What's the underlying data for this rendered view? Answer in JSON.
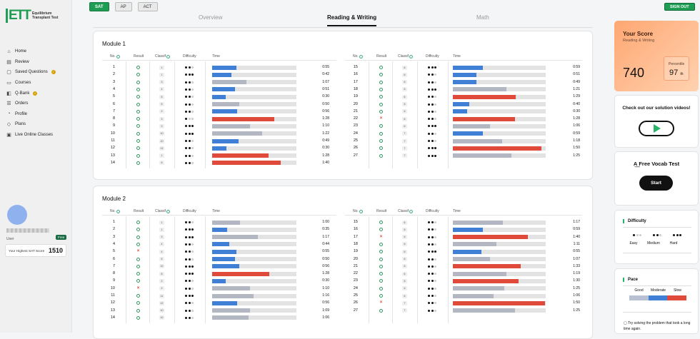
{
  "brand": {
    "logo_mark": "ETT",
    "logo_text_line1": "Equilibrium",
    "logo_text_line2": "Transplant Test"
  },
  "sidebar": {
    "items": [
      {
        "label": "Home",
        "icon": "home-icon",
        "glyph": "⌂"
      },
      {
        "label": "Review",
        "icon": "review-icon",
        "glyph": "▤"
      },
      {
        "label": "Saved Questions",
        "icon": "bookmark-icon",
        "glyph": "▢",
        "badge": true
      },
      {
        "label": "Courses",
        "icon": "courses-icon",
        "glyph": "▭"
      },
      {
        "label": "Q-Bank",
        "icon": "qbank-icon",
        "glyph": "◧",
        "badge": true
      },
      {
        "label": "Orders",
        "icon": "orders-icon",
        "glyph": "☰"
      },
      {
        "label": "Profile",
        "icon": "profile-icon",
        "glyph": "◔"
      },
      {
        "label": "Plans",
        "icon": "plans-icon",
        "glyph": "◇"
      },
      {
        "label": "Live Online Classes",
        "icon": "live-icon",
        "glyph": "▣"
      }
    ],
    "user_label": "User",
    "plan_badge": "Free",
    "highest_score_label": "Your Highest SAT Score",
    "highest_score_value": "1510"
  },
  "topbar": {
    "tests": [
      "SAT",
      "AP",
      "ACT"
    ],
    "active_test": "SAT",
    "signout": "SIGN OUT"
  },
  "tabs": {
    "items": [
      "Overview",
      "Reading & Writing",
      "Math"
    ],
    "active": "Reading & Writing"
  },
  "colors": {
    "green": "#1f9d55",
    "blue": "#3f7fd6",
    "gray": "#b2b7c1",
    "red": "#e04a3b"
  },
  "table_headers": {
    "no": "No.",
    "result": "Result",
    "classif": "Classif",
    "difficulty": "Difficulty",
    "time": "Time"
  },
  "modules": [
    {
      "title": "Module 1",
      "rows": [
        {
          "no": "1",
          "result": "ok",
          "cls": "1",
          "diff": 2,
          "pct": 0.29,
          "color": "blue",
          "time": "0:55"
        },
        {
          "no": "2",
          "result": "ok",
          "cls": "1",
          "diff": 3,
          "pct": 0.23,
          "color": "blue",
          "time": "0:42"
        },
        {
          "no": "3",
          "result": "ok",
          "cls": "3",
          "diff": 2,
          "pct": 0.41,
          "color": "gray",
          "time": "1:07"
        },
        {
          "no": "4",
          "result": "ok",
          "cls": "4",
          "diff": 2,
          "pct": 0.27,
          "color": "blue",
          "time": "0:51"
        },
        {
          "no": "5",
          "result": "ok",
          "cls": "5",
          "diff": 2,
          "pct": 0.16,
          "color": "blue",
          "time": "0:30"
        },
        {
          "no": "6",
          "result": "ok",
          "cls": "6",
          "diff": 2,
          "pct": 0.32,
          "color": "gray",
          "time": "0:50"
        },
        {
          "no": "7",
          "result": "ok",
          "cls": "2",
          "diff": 2,
          "pct": 0.3,
          "color": "blue",
          "time": "0:56"
        },
        {
          "no": "8",
          "result": "ok",
          "cls": "3",
          "diff": 1,
          "pct": 0.74,
          "color": "red",
          "time": "1:28"
        },
        {
          "no": "9",
          "result": "ok",
          "cls": "9",
          "diff": 3,
          "pct": 0.45,
          "color": "gray",
          "time": "1:10"
        },
        {
          "no": "10",
          "result": "ok",
          "cls": "10",
          "diff": 3,
          "pct": 0.59,
          "color": "gray",
          "time": "1:22"
        },
        {
          "no": "11",
          "result": "ok",
          "cls": "10",
          "diff": 2,
          "pct": 0.31,
          "color": "blue",
          "time": "0:49"
        },
        {
          "no": "12",
          "result": "ok",
          "cls": "12",
          "diff": 2,
          "pct": 0.17,
          "color": "blue",
          "time": "0:30"
        },
        {
          "no": "13",
          "result": "ok",
          "cls": "1",
          "diff": 2,
          "pct": 0.67,
          "color": "red",
          "time": "1:28"
        },
        {
          "no": "14",
          "result": "ok",
          "cls": "6",
          "diff": 2,
          "pct": 0.81,
          "color": "red",
          "time": "1:40"
        },
        {
          "no": "15",
          "result": "ok",
          "cls": "6",
          "diff": 3,
          "pct": 0.32,
          "color": "blue",
          "time": "0:59"
        },
        {
          "no": "16",
          "result": "ok",
          "cls": "6",
          "diff": 2,
          "pct": 0.25,
          "color": "blue",
          "time": "0:51"
        },
        {
          "no": "17",
          "result": "ok",
          "cls": "6",
          "diff": 2,
          "pct": 0.25,
          "color": "blue",
          "time": "0:49"
        },
        {
          "no": "18",
          "result": "ok",
          "cls": "6",
          "diff": 3,
          "pct": 0.58,
          "color": "gray",
          "time": "1:21"
        },
        {
          "no": "19",
          "result": "ok",
          "cls": "6",
          "diff": 2,
          "pct": 0.68,
          "color": "red",
          "time": "1:29"
        },
        {
          "no": "20",
          "result": "ok",
          "cls": "6",
          "diff": 2,
          "pct": 0.18,
          "color": "blue",
          "time": "0:40"
        },
        {
          "no": "21",
          "result": "ok",
          "cls": "6",
          "diff": 2,
          "pct": 0.15,
          "color": "blue",
          "time": "0:30"
        },
        {
          "no": "22",
          "result": "x",
          "cls": "6",
          "diff": 2,
          "pct": 0.67,
          "color": "red",
          "time": "1:28"
        },
        {
          "no": "23",
          "result": "ok",
          "cls": "6",
          "diff": 3,
          "pct": 0.4,
          "color": "gray",
          "time": "1:06"
        },
        {
          "no": "24",
          "result": "ok",
          "cls": "7",
          "diff": 2,
          "pct": 0.32,
          "color": "blue",
          "time": "0:59"
        },
        {
          "no": "25",
          "result": "ok",
          "cls": "7",
          "diff": 2,
          "pct": 0.53,
          "color": "gray",
          "time": "1:18"
        },
        {
          "no": "26",
          "result": "ok",
          "cls": "7",
          "diff": 3,
          "pct": 0.95,
          "color": "red",
          "time": "1:50"
        },
        {
          "no": "27",
          "result": "ok",
          "cls": "7",
          "diff": 3,
          "pct": 0.63,
          "color": "gray",
          "time": "1:25"
        }
      ]
    },
    {
      "title": "Module 2",
      "rows": [
        {
          "no": "1",
          "result": "ok",
          "cls": "1",
          "diff": 2,
          "pct": 0.33,
          "color": "gray",
          "time": "1:00"
        },
        {
          "no": "2",
          "result": "ok",
          "cls": "1",
          "diff": 3,
          "pct": 0.18,
          "color": "blue",
          "time": "0:35"
        },
        {
          "no": "3",
          "result": "ok",
          "cls": "3",
          "diff": 3,
          "pct": 0.54,
          "color": "gray",
          "time": "1:17"
        },
        {
          "no": "4",
          "result": "ok",
          "cls": "4",
          "diff": 2,
          "pct": 0.2,
          "color": "blue",
          "time": "0:44"
        },
        {
          "no": "5",
          "result": "x",
          "cls": "4",
          "diff": 2,
          "pct": 0.29,
          "color": "blue",
          "time": "0:55"
        },
        {
          "no": "6",
          "result": "ok",
          "cls": "5",
          "diff": 2,
          "pct": 0.27,
          "color": "blue",
          "time": "0:50"
        },
        {
          "no": "7",
          "result": "ok",
          "cls": "10",
          "diff": 3,
          "pct": 0.32,
          "color": "blue",
          "time": "0:56"
        },
        {
          "no": "8",
          "result": "ok",
          "cls": "8",
          "diff": 3,
          "pct": 0.68,
          "color": "red",
          "time": "1:28"
        },
        {
          "no": "9",
          "result": "ok",
          "cls": "2",
          "diff": 2,
          "pct": 0.16,
          "color": "blue",
          "time": "0:30"
        },
        {
          "no": "10",
          "result": "x",
          "cls": "2",
          "diff": 2,
          "pct": 0.45,
          "color": "gray",
          "time": "1:10"
        },
        {
          "no": "11",
          "result": "ok",
          "cls": "11",
          "diff": 3,
          "pct": 0.49,
          "color": "gray",
          "time": "1:16"
        },
        {
          "no": "12",
          "result": "ok",
          "cls": "12",
          "diff": 2,
          "pct": 0.3,
          "color": "blue",
          "time": "0:56"
        },
        {
          "no": "13",
          "result": "ok",
          "cls": "10",
          "diff": 2,
          "pct": 0.45,
          "color": "gray",
          "time": "1:09"
        },
        {
          "no": "14",
          "result": "ok",
          "cls": "10",
          "diff": 2,
          "pct": 0.43,
          "color": "gray",
          "time": "1:06"
        },
        {
          "no": "15",
          "result": "ok",
          "cls": "6",
          "diff": 2,
          "pct": 0.54,
          "color": "gray",
          "time": "1:17"
        },
        {
          "no": "16",
          "result": "ok",
          "cls": "6",
          "diff": 2,
          "pct": 0.32,
          "color": "blue",
          "time": "0:59"
        },
        {
          "no": "17",
          "result": "x",
          "cls": "6",
          "diff": 2,
          "pct": 0.81,
          "color": "red",
          "time": "1:40"
        },
        {
          "no": "18",
          "result": "ok",
          "cls": "6",
          "diff": 2,
          "pct": 0.47,
          "color": "gray",
          "time": "1:11"
        },
        {
          "no": "19",
          "result": "ok",
          "cls": "6",
          "diff": 3,
          "pct": 0.31,
          "color": "blue",
          "time": "0:55"
        },
        {
          "no": "20",
          "result": "ok",
          "cls": "6",
          "diff": 2,
          "pct": 0.4,
          "color": "gray",
          "time": "1:07"
        },
        {
          "no": "21",
          "result": "ok",
          "cls": "6",
          "diff": 2,
          "pct": 0.73,
          "color": "red",
          "time": "1:33"
        },
        {
          "no": "22",
          "result": "ok",
          "cls": "6",
          "diff": 2,
          "pct": 0.58,
          "color": "gray",
          "time": "1:19"
        },
        {
          "no": "23",
          "result": "ok",
          "cls": "6",
          "diff": 2,
          "pct": 0.71,
          "color": "red",
          "time": "1:30"
        },
        {
          "no": "24",
          "result": "ok",
          "cls": "6",
          "diff": 2,
          "pct": 0.55,
          "color": "gray",
          "time": "1:25"
        },
        {
          "no": "25",
          "result": "ok",
          "cls": "6",
          "diff": 2,
          "pct": 0.44,
          "color": "gray",
          "time": "1:06"
        },
        {
          "no": "26",
          "result": "x",
          "cls": "7",
          "diff": 2,
          "pct": 0.99,
          "color": "red",
          "time": "1:50"
        },
        {
          "no": "27",
          "result": "ok",
          "cls": "7",
          "diff": 2,
          "pct": 0.67,
          "color": "gray",
          "time": "1:25"
        }
      ]
    }
  ],
  "score_panel": {
    "title": "Your Score",
    "subtitle": "Reading & Writing",
    "score": "740",
    "percentile_label": "Percentile",
    "percentile_value": "97",
    "percentile_suffix": "th"
  },
  "video_panel": {
    "title": "Check out our solution videos!"
  },
  "vocab_panel": {
    "title": "Free Vocab Test",
    "button": "Start"
  },
  "difficulty_legend": {
    "title": "Difficulty",
    "levels": [
      {
        "label": "Easy",
        "dots": 1
      },
      {
        "label": "Medium",
        "dots": 2
      },
      {
        "label": "Hard",
        "dots": 3
      }
    ]
  },
  "pace_legend": {
    "title": "Pace",
    "labels": [
      "Good",
      "Moderate",
      "Slow"
    ],
    "note": "Try solving the problem that took a long time again."
  }
}
